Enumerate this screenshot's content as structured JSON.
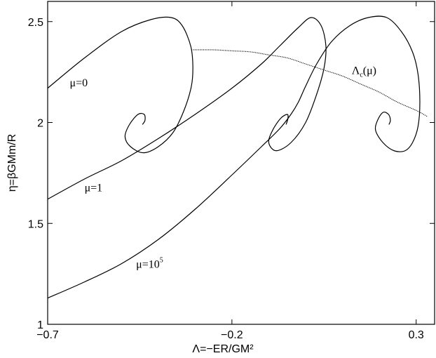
{
  "chart_data": {
    "type": "line",
    "title": "",
    "xlabel": "Λ=−ER/GM²",
    "ylabel": "η=βGMm/R",
    "xlim": [
      -0.7,
      0.35
    ],
    "ylim": [
      1.0,
      2.6
    ],
    "x_ticks": [
      -0.7,
      -0.2,
      0.3
    ],
    "x_tick_labels": [
      "−0.7",
      "−0.2",
      "0.3"
    ],
    "y_ticks": [
      1.0,
      1.5,
      2.0,
      2.5
    ],
    "y_tick_labels": [
      "1",
      "1.5",
      "2",
      "2.5"
    ],
    "grid": false,
    "series": [
      {
        "name": "μ=0",
        "style": "solid",
        "x": [
          -0.7,
          -0.6,
          -0.5,
          -0.42,
          -0.365,
          -0.335,
          -0.312,
          -0.306,
          -0.31,
          -0.33,
          -0.36,
          -0.4,
          -0.44,
          -0.475,
          -0.49,
          -0.478,
          -0.455,
          -0.438,
          -0.436,
          -0.443
        ],
        "y": [
          2.17,
          2.32,
          2.45,
          2.51,
          2.52,
          2.48,
          2.38,
          2.28,
          2.18,
          2.06,
          1.95,
          1.88,
          1.85,
          1.88,
          1.93,
          1.99,
          2.04,
          2.04,
          2.01,
          1.99
        ]
      },
      {
        "name": "μ=1",
        "style": "solid",
        "x": [
          -0.7,
          -0.6,
          -0.5,
          -0.4,
          -0.3,
          -0.2,
          -0.12,
          -0.07,
          -0.02,
          0.015,
          0.042,
          0.055,
          0.05,
          0.03,
          0.0,
          -0.04,
          -0.08,
          -0.1,
          -0.09,
          -0.068,
          -0.05,
          -0.048,
          -0.053
        ],
        "y": [
          1.62,
          1.72,
          1.81,
          1.92,
          2.04,
          2.17,
          2.29,
          2.38,
          2.47,
          2.52,
          2.48,
          2.38,
          2.27,
          2.14,
          2.0,
          1.9,
          1.86,
          1.9,
          1.96,
          2.02,
          2.04,
          2.02,
          1.99
        ]
      },
      {
        "name": "μ=10⁵",
        "style": "solid",
        "x": [
          -0.7,
          -0.6,
          -0.5,
          -0.4,
          -0.3,
          -0.2,
          -0.12,
          -0.07,
          -0.04,
          -0.02,
          0.0,
          0.03,
          0.07,
          0.12,
          0.17,
          0.22,
          0.26,
          0.29,
          0.305,
          0.31,
          0.305,
          0.29,
          0.27,
          0.24,
          0.21,
          0.19,
          0.195,
          0.21,
          0.225,
          0.23,
          0.226
        ],
        "y": [
          1.13,
          1.21,
          1.3,
          1.42,
          1.57,
          1.74,
          1.88,
          1.97,
          2.04,
          2.1,
          2.18,
          2.29,
          2.4,
          2.48,
          2.52,
          2.52,
          2.45,
          2.35,
          2.24,
          2.1,
          1.98,
          1.9,
          1.86,
          1.86,
          1.9,
          1.96,
          2.01,
          2.05,
          2.04,
          2.01,
          1.99
        ]
      },
      {
        "name": "Λc(μ)",
        "style": "dotted",
        "x": [
          -0.31,
          -0.25,
          -0.2,
          -0.15,
          -0.1,
          -0.05,
          0.0,
          0.05,
          0.1,
          0.15,
          0.2,
          0.25,
          0.3,
          0.33
        ],
        "y": [
          2.36,
          2.36,
          2.355,
          2.35,
          2.335,
          2.32,
          2.29,
          2.26,
          2.23,
          2.19,
          2.15,
          2.1,
          2.06,
          2.03
        ]
      }
    ],
    "annotations": [
      {
        "text": "μ=0",
        "x": -0.64,
        "y": 2.18
      },
      {
        "text": "μ=1",
        "x": -0.6,
        "y": 1.66
      },
      {
        "text": "μ=10",
        "sup": "5",
        "x": -0.46,
        "y": 1.28
      },
      {
        "text": "Λ",
        "sub": "c",
        "suffix": "(μ)",
        "x": 0.125,
        "y": 2.24
      }
    ]
  }
}
